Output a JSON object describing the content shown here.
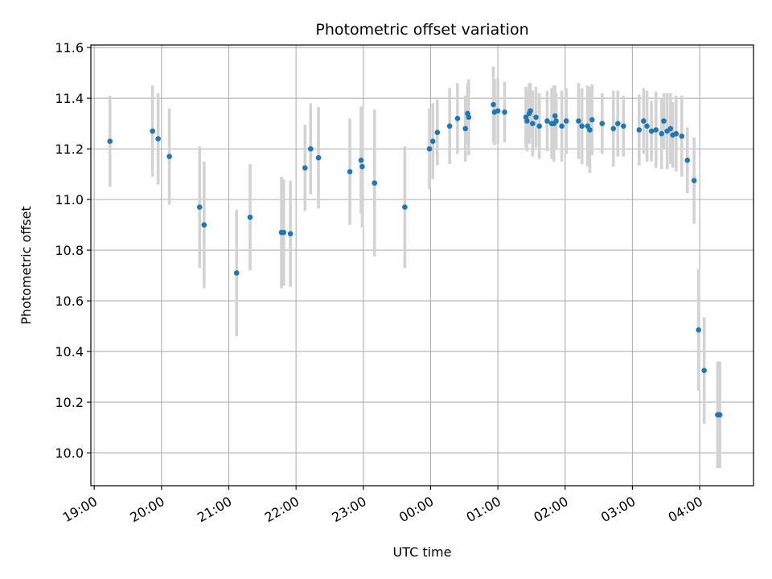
{
  "chart_data": {
    "type": "scatter",
    "title": "Photometric offset variation",
    "xlabel": "UTC time",
    "ylabel": "Photometric offset",
    "x_ticks": [
      "19:00",
      "20:00",
      "21:00",
      "22:00",
      "23:00",
      "00:00",
      "01:00",
      "02:00",
      "03:00",
      "04:00"
    ],
    "y_ticks": [
      "10.0",
      "10.2",
      "10.4",
      "10.6",
      "10.8",
      "11.0",
      "11.2",
      "11.4",
      "11.6"
    ],
    "xlim": [
      "18:57",
      "04:48"
    ],
    "ylim": [
      9.87,
      11.61
    ],
    "grid": true,
    "colors": {
      "point": "#1f77b4",
      "errorbar": "#d3d3d3",
      "grid": "#b0b0b0"
    },
    "series": [
      {
        "x": [
          "19:14",
          "19:52",
          "19:57",
          "20:07",
          "20:34",
          "20:38",
          "21:07",
          "21:19",
          "21:47",
          "21:49",
          "21:55",
          "22:08",
          "22:13",
          "22:20",
          "22:48",
          "22:58",
          "22:59",
          "23:10",
          "23:37",
          "23:59",
          "00:02",
          "00:06",
          "00:17",
          "00:24",
          "00:31",
          "00:33",
          "00:34",
          "00:56",
          "00:57",
          "01:00",
          "01:06",
          "01:25",
          "01:26",
          "01:28",
          "01:29",
          "01:31",
          "01:34",
          "01:37",
          "01:44",
          "01:48",
          "01:50",
          "01:51",
          "01:52",
          "01:57",
          "02:01",
          "02:12",
          "02:15",
          "02:20",
          "02:22",
          "02:24",
          "02:33",
          "02:43",
          "02:47",
          "02:52",
          "03:06",
          "03:10",
          "03:13",
          "03:17",
          "03:21",
          "03:26",
          "03:28",
          "03:31",
          "03:34",
          "03:36",
          "03:39",
          "03:44",
          "03:49",
          "03:55",
          "03:59",
          "04:04",
          "04:16",
          "04:17",
          "04:18"
        ],
        "y": [
          11.23,
          11.27,
          11.24,
          11.17,
          10.97,
          10.9,
          10.71,
          10.93,
          10.87,
          10.87,
          10.865,
          11.125,
          11.2,
          11.165,
          11.11,
          11.155,
          11.13,
          11.065,
          10.97,
          11.2,
          11.23,
          11.265,
          11.29,
          11.32,
          11.28,
          11.34,
          11.325,
          11.375,
          11.345,
          11.35,
          11.345,
          11.325,
          11.31,
          11.34,
          11.35,
          11.3,
          11.325,
          11.29,
          11.31,
          11.3,
          11.3,
          11.33,
          11.31,
          11.29,
          11.31,
          11.31,
          11.29,
          11.29,
          11.275,
          11.315,
          11.3,
          11.28,
          11.3,
          11.29,
          11.275,
          11.31,
          11.29,
          11.27,
          11.275,
          11.26,
          11.31,
          11.27,
          11.28,
          11.255,
          11.26,
          11.25,
          11.155,
          11.075,
          10.485,
          10.325,
          10.15,
          10.15,
          10.15
        ],
        "yerr": [
          0.18,
          0.18,
          0.18,
          0.19,
          0.24,
          0.25,
          0.25,
          0.21,
          0.22,
          0.21,
          0.21,
          0.17,
          0.18,
          0.2,
          0.21,
          0.21,
          0.24,
          0.29,
          0.24,
          0.16,
          0.15,
          0.13,
          0.15,
          0.14,
          0.13,
          0.12,
          0.15,
          0.15,
          0.13,
          0.13,
          0.12,
          0.12,
          0.12,
          0.12,
          0.11,
          0.13,
          0.12,
          0.13,
          0.12,
          0.14,
          0.15,
          0.12,
          0.11,
          0.14,
          0.13,
          0.15,
          0.15,
          0.16,
          0.17,
          0.14,
          0.12,
          0.15,
          0.13,
          0.12,
          0.14,
          0.13,
          0.14,
          0.12,
          0.15,
          0.14,
          0.11,
          0.15,
          0.14,
          0.13,
          0.15,
          0.16,
          0.13,
          0.17,
          0.24,
          0.21,
          0.21,
          0.21,
          0.21
        ]
      }
    ]
  }
}
